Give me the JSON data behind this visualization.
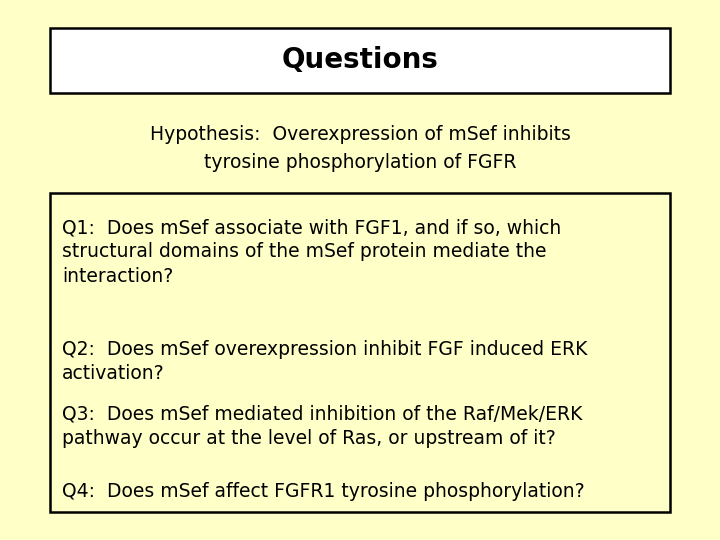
{
  "background_color": "#ffffc8",
  "title": "Questions",
  "title_fontsize": 20,
  "title_box_color": "#ffffff",
  "title_box_edge": "#000000",
  "hypothesis_line1": "Hypothesis:  Overexpression of mSef inhibits",
  "hypothesis_line2": "tyrosine phosphorylation of FGFR",
  "hypothesis_fontsize": 13.5,
  "questions": [
    "Q1:  Does mSef associate with FGF1, and if so, which\nstructural domains of the mSef protein mediate the\ninteraction?",
    "Q2:  Does mSef overexpression inhibit FGF induced ERK\nactivation?",
    "Q3:  Does mSef mediated inhibition of the Raf/Mek/ERK\npathway occur at the level of Ras, or upstream of it?",
    "Q4:  Does mSef affect FGFR1 tyrosine phosphorylation?"
  ],
  "questions_fontsize": 13.5,
  "questions_box_edge": "#000000",
  "text_color": "#000000",
  "font_family": "DejaVu Sans"
}
